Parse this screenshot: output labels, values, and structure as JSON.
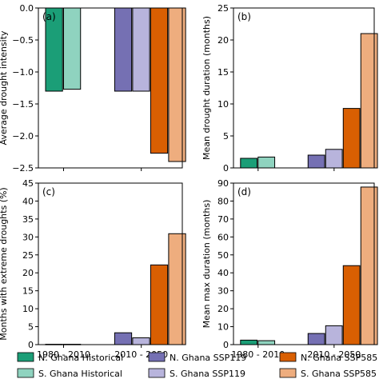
{
  "colors": {
    "n_hist": "#1b9e77",
    "s_hist": "#8fd3bf",
    "n_ssp119": "#7570b3",
    "s_ssp119": "#b8b4dc",
    "n_ssp585": "#d95f02",
    "s_ssp585": "#eead7e"
  },
  "chart_data": [
    {
      "panel_label": "(a)",
      "type": "bar",
      "ylabel": "Average drought intensity",
      "ylim": [
        -2.5,
        0.0
      ],
      "yticks": [
        0.0,
        -0.5,
        -1.0,
        -1.5,
        -2.0,
        -2.5
      ],
      "ytick_labels": [
        "0.0",
        "−0.5",
        "−1.0",
        "−1.5",
        "−2.0",
        "−2.5"
      ],
      "groups": [
        "1980 - 2010",
        "2010 - 2050"
      ],
      "series": [
        {
          "name": "N. Ghana Historical",
          "color_key": "n_hist",
          "values": [
            -1.3,
            null
          ]
        },
        {
          "name": "S. Ghana Historical",
          "color_key": "s_hist",
          "values": [
            -1.27,
            null
          ]
        },
        {
          "name": "N. Ghana SSP119",
          "color_key": "n_ssp119",
          "values": [
            null,
            -1.3
          ]
        },
        {
          "name": "S. Ghana SSP119",
          "color_key": "s_ssp119",
          "values": [
            null,
            -1.3
          ]
        },
        {
          "name": "N. Ghana SSP585",
          "color_key": "n_ssp585",
          "values": [
            null,
            -2.27
          ]
        },
        {
          "name": "S. Ghana SSP585",
          "color_key": "s_ssp585",
          "values": [
            null,
            -2.4
          ]
        }
      ]
    },
    {
      "panel_label": "(b)",
      "type": "bar",
      "ylabel": "Mean drought duration (months)",
      "ylim": [
        0,
        25
      ],
      "yticks": [
        0,
        5,
        10,
        15,
        20,
        25
      ],
      "ytick_labels": [
        "0",
        "5",
        "10",
        "15",
        "20",
        "25"
      ],
      "groups": [
        "1980 - 2010",
        "2010 - 2050"
      ],
      "series": [
        {
          "name": "N. Ghana Historical",
          "color_key": "n_hist",
          "values": [
            1.5,
            null
          ]
        },
        {
          "name": "S. Ghana Historical",
          "color_key": "s_hist",
          "values": [
            1.7,
            null
          ]
        },
        {
          "name": "N. Ghana SSP119",
          "color_key": "n_ssp119",
          "values": [
            null,
            2.0
          ]
        },
        {
          "name": "S. Ghana SSP119",
          "color_key": "s_ssp119",
          "values": [
            null,
            2.9
          ]
        },
        {
          "name": "N. Ghana SSP585",
          "color_key": "n_ssp585",
          "values": [
            null,
            9.3
          ]
        },
        {
          "name": "S. Ghana SSP585",
          "color_key": "s_ssp585",
          "values": [
            null,
            21.0
          ]
        }
      ]
    },
    {
      "panel_label": "(c)",
      "type": "bar",
      "ylabel": "Months with extreme droughts (%)",
      "ylim": [
        0,
        45
      ],
      "yticks": [
        0,
        5,
        10,
        15,
        20,
        25,
        30,
        35,
        40,
        45
      ],
      "ytick_labels": [
        "0",
        "5",
        "10",
        "15",
        "20",
        "25",
        "30",
        "35",
        "40",
        "45"
      ],
      "groups": [
        "1980 - 2010",
        "2010 - 2050"
      ],
      "series": [
        {
          "name": "N. Ghana Historical",
          "color_key": "n_hist",
          "values": [
            0.1,
            null
          ]
        },
        {
          "name": "S. Ghana Historical",
          "color_key": "s_hist",
          "values": [
            0.1,
            null
          ]
        },
        {
          "name": "N. Ghana SSP119",
          "color_key": "n_ssp119",
          "values": [
            null,
            3.3
          ]
        },
        {
          "name": "S. Ghana SSP119",
          "color_key": "s_ssp119",
          "values": [
            null,
            1.9
          ]
        },
        {
          "name": "N. Ghana SSP585",
          "color_key": "n_ssp585",
          "values": [
            null,
            22.2
          ]
        },
        {
          "name": "S. Ghana SSP585",
          "color_key": "s_ssp585",
          "values": [
            null,
            30.9
          ]
        }
      ]
    },
    {
      "panel_label": "(d)",
      "type": "bar",
      "ylabel": "Mean max duration (months)",
      "ylim": [
        0,
        90
      ],
      "yticks": [
        0,
        10,
        20,
        30,
        40,
        50,
        60,
        70,
        80,
        90
      ],
      "ytick_labels": [
        "0",
        "10",
        "20",
        "30",
        "40",
        "50",
        "60",
        "70",
        "80",
        "90"
      ],
      "groups": [
        "1980 - 2010",
        "2010 - 2050"
      ],
      "series": [
        {
          "name": "N. Ghana Historical",
          "color_key": "n_hist",
          "values": [
            2.5,
            null
          ]
        },
        {
          "name": "S. Ghana Historical",
          "color_key": "s_hist",
          "values": [
            2.2,
            null
          ]
        },
        {
          "name": "N. Ghana SSP119",
          "color_key": "n_ssp119",
          "values": [
            null,
            6.2
          ]
        },
        {
          "name": "S. Ghana SSP119",
          "color_key": "s_ssp119",
          "values": [
            null,
            10.5
          ]
        },
        {
          "name": "N. Ghana SSP585",
          "color_key": "n_ssp585",
          "values": [
            null,
            44.0
          ]
        },
        {
          "name": "S. Ghana SSP585",
          "color_key": "s_ssp585",
          "values": [
            null,
            87.8
          ]
        }
      ]
    }
  ],
  "legend": {
    "placement": "bottom",
    "items": [
      {
        "label": "N. Ghana Historical",
        "color_key": "n_hist"
      },
      {
        "label": "N. Ghana SSP119",
        "color_key": "n_ssp119"
      },
      {
        "label": "N. Ghana SSP585",
        "color_key": "n_ssp585"
      },
      {
        "label": "S. Ghana Historical",
        "color_key": "s_hist"
      },
      {
        "label": "S. Ghana SSP119",
        "color_key": "s_ssp119"
      },
      {
        "label": "S. Ghana SSP585",
        "color_key": "s_ssp585"
      }
    ]
  }
}
